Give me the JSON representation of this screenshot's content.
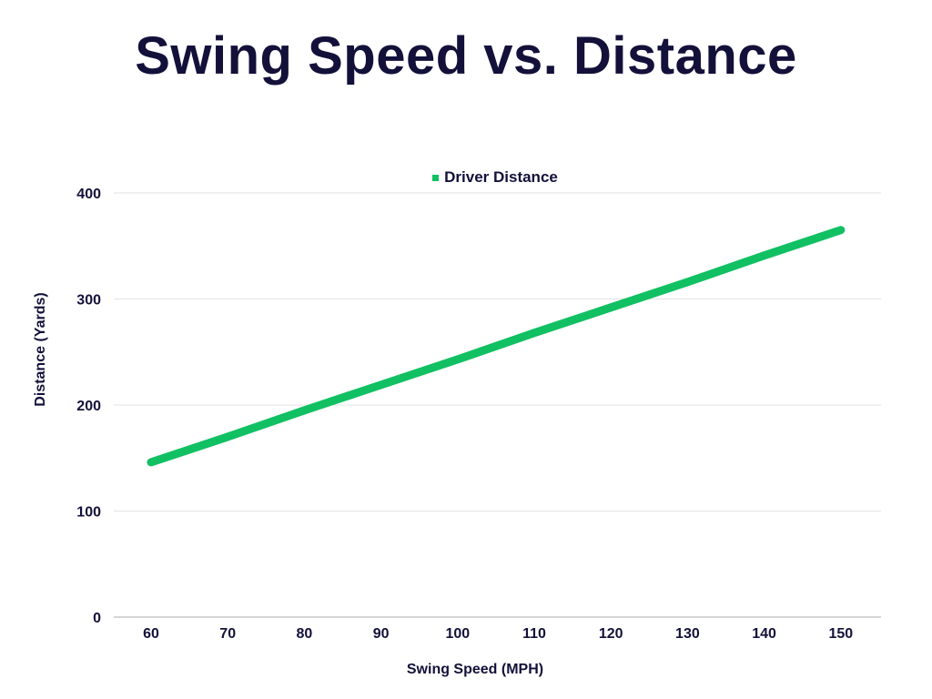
{
  "chart_data": {
    "type": "line",
    "title": "Swing Speed vs. Distance",
    "xlabel": "Swing Speed (MPH)",
    "ylabel": "Distance (Yards)",
    "x": [
      60,
      70,
      80,
      90,
      100,
      110,
      120,
      130,
      140,
      150
    ],
    "series": [
      {
        "name": "Driver Distance",
        "color": "#10c062",
        "values": [
          146,
          170,
          195,
          219,
          243,
          268,
          292,
          316,
          341,
          365
        ]
      }
    ],
    "xticks": [
      "60",
      "70",
      "80",
      "90",
      "100",
      "110",
      "120",
      "130",
      "140",
      "150"
    ],
    "yticks": [
      "0",
      "100",
      "200",
      "300",
      "400"
    ],
    "ylim": [
      0,
      400
    ],
    "grid": true,
    "legend_position": "top-center"
  }
}
